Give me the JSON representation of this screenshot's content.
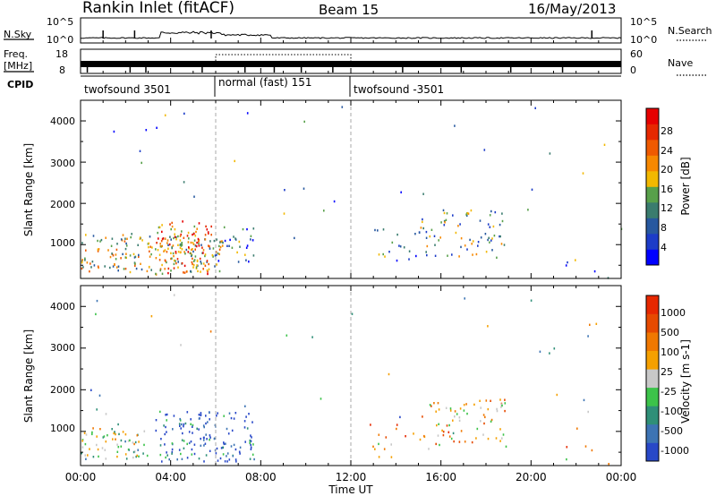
{
  "header": {
    "station": "Rankin Inlet (fitACF)",
    "beam": "Beam 15",
    "date": "16/May/2013"
  },
  "noise_panel": {
    "left_label": "N.Sky",
    "left_ticks": [
      "10^5",
      "10^0"
    ],
    "right_ticks": [
      "10^5",
      "10^0"
    ],
    "right_label": "N.Search"
  },
  "freq_panel": {
    "left_label_1": "Freq.",
    "left_label_2": "[MHz]",
    "left_ticks": [
      "18",
      "8"
    ],
    "right_ticks": [
      "60",
      "0"
    ],
    "right_label": "Nave"
  },
  "cpid": {
    "label": "CPID",
    "segments": [
      {
        "name": "twofsound 3501",
        "start_h": 0,
        "end_h": 6
      },
      {
        "name": "normal (fast) 151",
        "start_h": 6,
        "end_h": 12
      },
      {
        "name": "twofsound -3501",
        "start_h": 12,
        "end_h": 24
      }
    ]
  },
  "time_axis": {
    "label": "Time UT",
    "ticks": [
      "00:00",
      "04:00",
      "08:00",
      "12:00",
      "16:00",
      "20:00",
      "00:00"
    ],
    "range_h": [
      0,
      24
    ]
  },
  "chart_data": [
    {
      "type": "heatmap",
      "name": "power",
      "ylabel": "Slant Range [km]",
      "ylim": [
        180,
        4500
      ],
      "yticks": [
        "4000",
        "3000",
        "2000",
        "1000"
      ],
      "colorbar_label": "Power [dB]",
      "colorbar_ticks": [
        "28",
        "24",
        "20",
        "16",
        "12",
        "8",
        "4"
      ],
      "colorbar_colors": [
        "#0000ff",
        "#1c3cc8",
        "#27589f",
        "#3a7c6e",
        "#58a04a",
        "#f2b800",
        "#f78800",
        "#ef5a00",
        "#e62800",
        "#e60000"
      ],
      "scatter_regions": [
        {
          "t0": 0.0,
          "t1": 6.3,
          "r0": 350,
          "r1": 1300,
          "density": 0.9,
          "level": 0.5
        },
        {
          "t0": 3.3,
          "t1": 5.8,
          "r0": 300,
          "r1": 1600,
          "density": 0.95,
          "level": 0.7
        },
        {
          "t0": 5.9,
          "t1": 7.7,
          "r0": 600,
          "r1": 1450,
          "density": 0.55,
          "level": 0.25
        },
        {
          "t0": 13.0,
          "t1": 15.0,
          "r0": 400,
          "r1": 1450,
          "density": 0.2,
          "level": 0.3
        },
        {
          "t0": 15.0,
          "t1": 18.9,
          "r0": 700,
          "r1": 1900,
          "density": 0.45,
          "level": 0.4
        },
        {
          "t0": 21.5,
          "t1": 23.5,
          "r0": 200,
          "r1": 700,
          "density": 0.15,
          "level": 0.35
        },
        {
          "t0": 0.0,
          "t1": 24.0,
          "r0": 800,
          "r1": 4400,
          "density": 0.012,
          "level": 0.3
        }
      ]
    },
    {
      "type": "heatmap",
      "name": "velocity",
      "ylabel": "Slant Range [km]",
      "ylim": [
        180,
        4500
      ],
      "yticks": [
        "4000",
        "3000",
        "2000",
        "1000"
      ],
      "colorbar_label": "Velocity [m s-1]",
      "colorbar_ticks": [
        "1000",
        "500",
        "100",
        "25",
        "-25",
        "-100",
        "-500",
        "-1000"
      ],
      "colorbar_colors": [
        "#2848c8",
        "#3d74b4",
        "#2f8f78",
        "#3cc34a",
        "#c8c8c8",
        "#f5a000",
        "#f07800",
        "#e64a00",
        "#e62800"
      ],
      "scatter_regions": [
        {
          "t0": 0.0,
          "t1": 3.0,
          "r0": 350,
          "r1": 1100,
          "density": 0.85,
          "level": 0.45
        },
        {
          "t0": 3.3,
          "t1": 7.7,
          "r0": 300,
          "r1": 1500,
          "density": 0.8,
          "level": 0.1
        },
        {
          "t0": 12.8,
          "t1": 15.0,
          "r0": 400,
          "r1": 1300,
          "density": 0.2,
          "level": 0.7
        },
        {
          "t0": 15.0,
          "t1": 18.9,
          "r0": 600,
          "r1": 1800,
          "density": 0.45,
          "level": 0.6
        },
        {
          "t0": 21.5,
          "t1": 23.5,
          "r0": 200,
          "r1": 700,
          "density": 0.15,
          "level": 0.7
        },
        {
          "t0": 0.0,
          "t1": 24.0,
          "r0": 800,
          "r1": 4400,
          "density": 0.012,
          "level": 0.4
        }
      ]
    }
  ]
}
